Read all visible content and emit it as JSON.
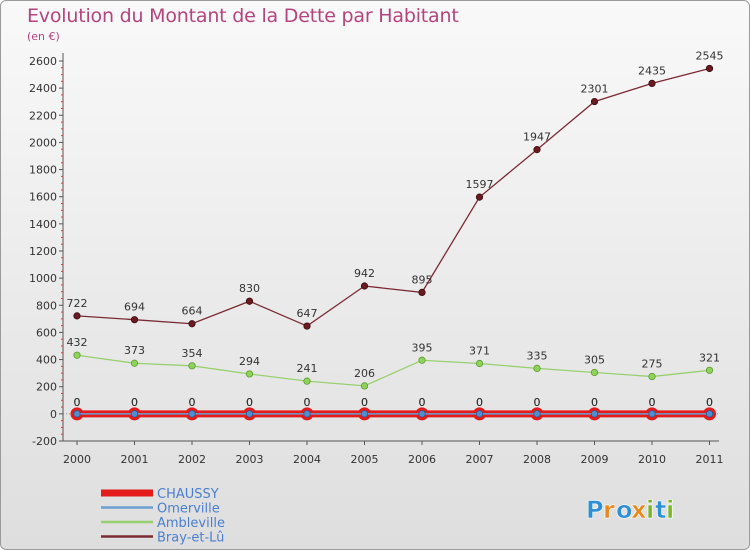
{
  "title": "Evolution du Montant de la Dette par Habitant",
  "subtitle": "(en €)",
  "brand": {
    "letters": [
      "P",
      "r",
      "o",
      "x",
      "i",
      "t",
      "i"
    ],
    "colors": [
      "#2e8fd4",
      "#e8891c",
      "#2e8fd4",
      "#e8891c",
      "#7ab52d",
      "#2e8fd4",
      "#7ab52d"
    ]
  },
  "chart_data": {
    "type": "line",
    "title": "Evolution du Montant de la Dette par Habitant",
    "subtitle": "(en €)",
    "x": [
      "2000",
      "2001",
      "2002",
      "2003",
      "2004",
      "2005",
      "2006",
      "2007",
      "2008",
      "2009",
      "2010",
      "2011"
    ],
    "ylim": [
      -200,
      2600
    ],
    "yticks": [
      -200,
      0,
      200,
      400,
      600,
      800,
      1000,
      1200,
      1400,
      1600,
      1800,
      2000,
      2200,
      2400,
      2600
    ],
    "grid": false,
    "legend_position": "bottom-left",
    "series": [
      {
        "name": "CHAUSSY",
        "color": "#e41b1b",
        "values": [
          0,
          0,
          0,
          0,
          0,
          0,
          0,
          0,
          0,
          0,
          0,
          0
        ]
      },
      {
        "name": "Omerville",
        "color": "#6a9fd0",
        "values": [
          0,
          0,
          0,
          0,
          0,
          0,
          0,
          0,
          0,
          0,
          0,
          0
        ]
      },
      {
        "name": "Ambleville",
        "color": "#98d070",
        "values": [
          432,
          373,
          354,
          294,
          241,
          206,
          395,
          371,
          335,
          305,
          275,
          321
        ]
      },
      {
        "name": "Bray-et-Lû",
        "color": "#7b2a33",
        "values": [
          722,
          694,
          664,
          830,
          647,
          942,
          895,
          1597,
          1947,
          2301,
          2435,
          2545
        ]
      }
    ]
  }
}
